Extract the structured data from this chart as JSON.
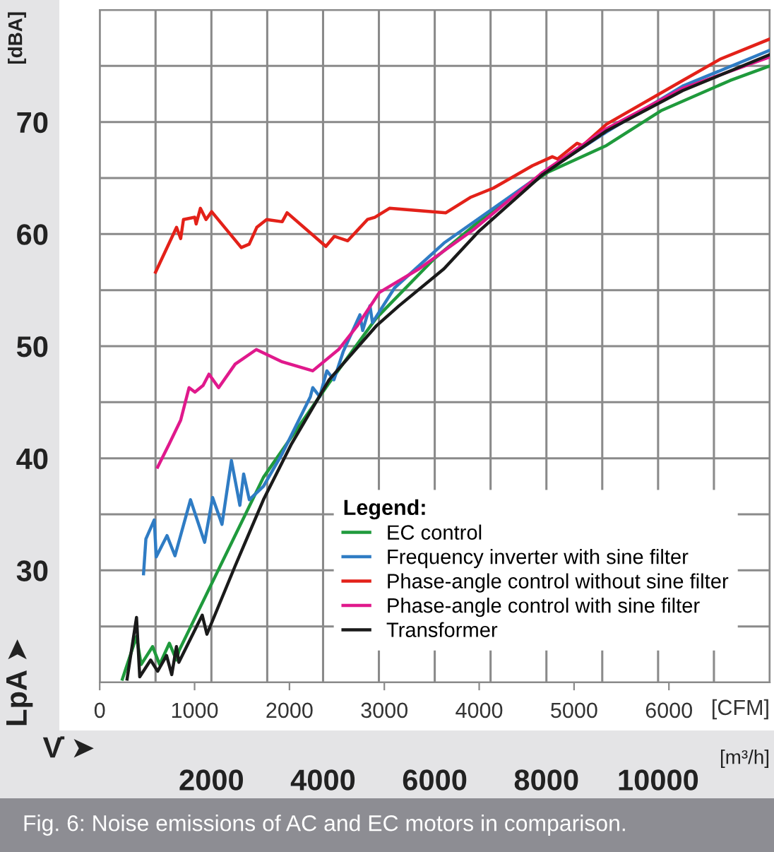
{
  "chart_data": {
    "type": "line",
    "xlabel": "V̇ ➤",
    "x2label": "[CFM]",
    "ylabel": "LpA ➤",
    "legend_title": "Legend:",
    "annotations": [
      "[dBA]",
      "[m³/h]",
      "Fig. 6: Noise emissions of AC and EC motors in comparison."
    ],
    "xlim": [
      0,
      12000
    ],
    "xticks": [
      {
        "value": 0,
        "label": null
      },
      {
        "value": 1000,
        "label": null
      },
      2000,
      {
        "value": 3000,
        "label": null
      },
      4000,
      {
        "value": 5000,
        "label": null
      },
      6000,
      {
        "value": 7000,
        "label": null
      },
      8000,
      {
        "value": 9000,
        "label": null
      },
      10000,
      {
        "value": 11000,
        "label": null
      },
      {
        "value": 12000,
        "label": null
      }
    ],
    "x2lim": [
      0,
      7063
    ],
    "x2ticks": [
      0,
      1000,
      2000,
      3000,
      4000,
      5000,
      6000
    ],
    "ylim": [
      20,
      80
    ],
    "yticks": [
      {
        "value": 20,
        "label": null
      },
      {
        "value": 25,
        "label": null
      },
      30,
      {
        "value": 35,
        "label": null
      },
      40,
      {
        "value": 45,
        "label": null
      },
      50,
      {
        "value": 55,
        "label": null
      },
      60,
      {
        "value": 65,
        "label": null
      },
      70,
      {
        "value": 75,
        "label": null
      },
      {
        "value": 80,
        "label": null
      }
    ],
    "grid": true,
    "legend": "bottom right",
    "line_style": "solid",
    "marker": "none",
    "series": [
      {
        "name": "EC control",
        "color": "#1f9a3c",
        "x": [
          406,
          659,
          742,
          947,
          1073,
          1247,
          1374,
          1417,
          2932,
          4105,
          4952,
          5990,
          7050,
          8020,
          9075,
          10050,
          11290,
          12000
        ],
        "values": [
          20.3,
          24.1,
          21.6,
          23.2,
          21.6,
          23.5,
          22,
          22.8,
          38.3,
          46.7,
          52.5,
          57.8,
          62.2,
          65.5,
          67.9,
          71,
          73.7,
          75
        ]
      },
      {
        "name": "Frequency inverter with sine filter",
        "color": "#2f7cc4",
        "x": [
          785,
          827,
          977,
          1012,
          1205,
          1348,
          1626,
          1879,
          2022,
          2190,
          2359,
          2510,
          2578,
          2679,
          2932,
          3268,
          3773,
          3815,
          3940,
          4068,
          4195,
          4360,
          4660,
          4710,
          4840,
          4885,
          5280,
          6165,
          8020,
          9075,
          10440,
          12000
        ],
        "values": [
          29.7,
          32.8,
          34.5,
          31.2,
          33.1,
          31.3,
          36.3,
          32.5,
          36.5,
          34.1,
          39.8,
          35.8,
          38.6,
          36.3,
          37.5,
          40.4,
          45.5,
          46.3,
          45.5,
          47.8,
          47,
          49.5,
          52.8,
          51.4,
          53.6,
          52.1,
          55.2,
          59.2,
          65.7,
          69.1,
          73.2,
          76.4
        ]
      },
      {
        "name": "Phase-angle control without sine filter",
        "color": "#e32119",
        "x": [
          1000,
          1376,
          1450,
          1500,
          1702,
          1727,
          1803,
          1904,
          2005,
          2535,
          2677,
          2813,
          2990,
          3268,
          3356,
          4050,
          4202,
          4442,
          4795,
          4927,
          5190,
          6200,
          6650,
          7050,
          7750,
          8105,
          8200,
          8550,
          8650,
          9075,
          10440,
          11110,
          12000
        ],
        "values": [
          56.6,
          60.6,
          59.6,
          61.3,
          61.5,
          60.9,
          62.3,
          61.3,
          62,
          58.8,
          59.1,
          60.6,
          61.3,
          61.1,
          61.9,
          58.9,
          59.8,
          59.4,
          61.3,
          61.5,
          62.3,
          61.9,
          63.3,
          64.1,
          66.1,
          66.9,
          66.7,
          68.1,
          67.9,
          69.8,
          73.7,
          75.6,
          77.4
        ]
      },
      {
        "name": "Phase-angle control with sine filter",
        "color": "#e0198c",
        "x": [
          1037,
          1247,
          1450,
          1600,
          1705,
          1852,
          1956,
          2130,
          2426,
          2805,
          3268,
          3815,
          4277,
          4611,
          5010,
          5720,
          6695,
          7930,
          9075,
          10440,
          12000
        ],
        "values": [
          39.2,
          41.3,
          43.4,
          46.3,
          45.9,
          46.5,
          47.5,
          46.3,
          48.4,
          49.7,
          48.6,
          47.8,
          49.7,
          51.8,
          54.8,
          56.9,
          60.4,
          65.5,
          69.4,
          73,
          75.8
        ]
      },
      {
        "name": "Transformer",
        "color": "#1a1a1a",
        "x": [
          490,
          659,
          717,
          912,
          1037,
          1197,
          1290,
          1374,
          1417,
          1836,
          1920,
          2426,
          2932,
          3437,
          4108,
          4952,
          5360,
          6165,
          6780,
          7930,
          9075,
          10440,
          12000
        ],
        "values": [
          20.3,
          25.8,
          20.5,
          22,
          21,
          22.4,
          20.7,
          23.2,
          21.8,
          26,
          24.3,
          30.4,
          36.3,
          41.3,
          47,
          51.8,
          53.6,
          56.9,
          60.2,
          65.3,
          69.2,
          72.8,
          76
        ]
      }
    ]
  }
}
